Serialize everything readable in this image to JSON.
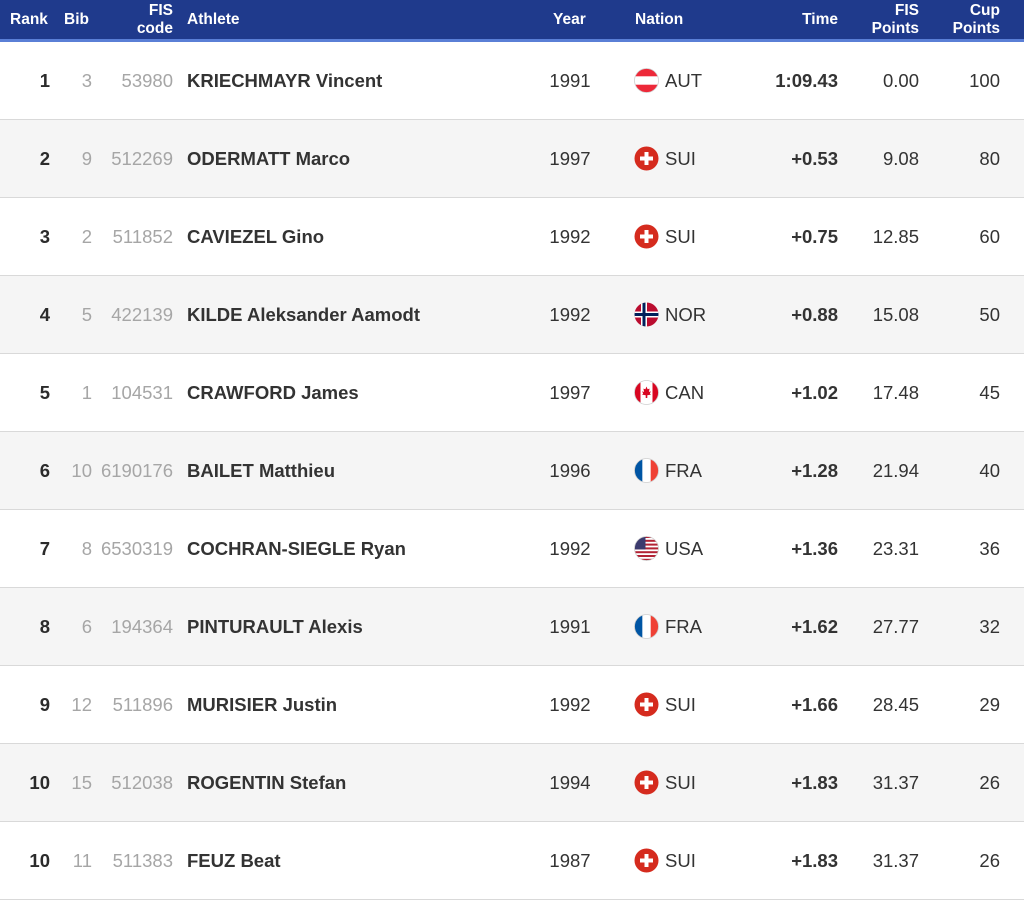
{
  "headers": {
    "rank": "Rank",
    "bib": "Bib",
    "code_line1": "FIS",
    "code_line2": "code",
    "athlete": "Athlete",
    "year": "Year",
    "nation": "Nation",
    "time": "Time",
    "fis_points_line1": "FIS",
    "fis_points_line2": "Points",
    "cup_points_line1": "Cup",
    "cup_points_line2": "Points"
  },
  "rows": [
    {
      "rank": "1",
      "bib": "3",
      "code": "53980",
      "athlete": "KRIECHMAYR Vincent",
      "year": "1991",
      "flag": "flag-austria-icon",
      "nation": "AUT",
      "time": "1:09.43",
      "fis_points": "0.00",
      "cup_points": "100"
    },
    {
      "rank": "2",
      "bib": "9",
      "code": "512269",
      "athlete": "ODERMATT Marco",
      "year": "1997",
      "flag": "flag-switzerland-icon",
      "nation": "SUI",
      "time": "+0.53",
      "fis_points": "9.08",
      "cup_points": "80"
    },
    {
      "rank": "3",
      "bib": "2",
      "code": "511852",
      "athlete": "CAVIEZEL Gino",
      "year": "1992",
      "flag": "flag-switzerland-icon",
      "nation": "SUI",
      "time": "+0.75",
      "fis_points": "12.85",
      "cup_points": "60"
    },
    {
      "rank": "4",
      "bib": "5",
      "code": "422139",
      "athlete": "KILDE Aleksander Aamodt",
      "year": "1992",
      "flag": "flag-norway-icon",
      "nation": "NOR",
      "time": "+0.88",
      "fis_points": "15.08",
      "cup_points": "50"
    },
    {
      "rank": "5",
      "bib": "1",
      "code": "104531",
      "athlete": "CRAWFORD James",
      "year": "1997",
      "flag": "flag-canada-icon",
      "nation": "CAN",
      "time": "+1.02",
      "fis_points": "17.48",
      "cup_points": "45"
    },
    {
      "rank": "6",
      "bib": "10",
      "code": "6190176",
      "athlete": "BAILET Matthieu",
      "year": "1996",
      "flag": "flag-france-icon",
      "nation": "FRA",
      "time": "+1.28",
      "fis_points": "21.94",
      "cup_points": "40"
    },
    {
      "rank": "7",
      "bib": "8",
      "code": "6530319",
      "athlete": "COCHRAN-SIEGLE Ryan",
      "year": "1992",
      "flag": "flag-usa-icon",
      "nation": "USA",
      "time": "+1.36",
      "fis_points": "23.31",
      "cup_points": "36"
    },
    {
      "rank": "8",
      "bib": "6",
      "code": "194364",
      "athlete": "PINTURAULT Alexis",
      "year": "1991",
      "flag": "flag-france-icon",
      "nation": "FRA",
      "time": "+1.62",
      "fis_points": "27.77",
      "cup_points": "32"
    },
    {
      "rank": "9",
      "bib": "12",
      "code": "511896",
      "athlete": "MURISIER Justin",
      "year": "1992",
      "flag": "flag-switzerland-icon",
      "nation": "SUI",
      "time": "+1.66",
      "fis_points": "28.45",
      "cup_points": "29"
    },
    {
      "rank": "10",
      "bib": "15",
      "code": "512038",
      "athlete": "ROGENTIN Stefan",
      "year": "1994",
      "flag": "flag-switzerland-icon",
      "nation": "SUI",
      "time": "+1.83",
      "fis_points": "31.37",
      "cup_points": "26"
    },
    {
      "rank": "10",
      "bib": "11",
      "code": "511383",
      "athlete": "FEUZ Beat",
      "year": "1987",
      "flag": "flag-switzerland-icon",
      "nation": "SUI",
      "time": "+1.83",
      "fis_points": "31.37",
      "cup_points": "26"
    }
  ],
  "colors": {
    "header_bg": "#1f3a8c",
    "header_accent": "#5a7fd6",
    "row_alt_bg": "#f5f5f5",
    "muted_text": "#a6a6a6"
  }
}
